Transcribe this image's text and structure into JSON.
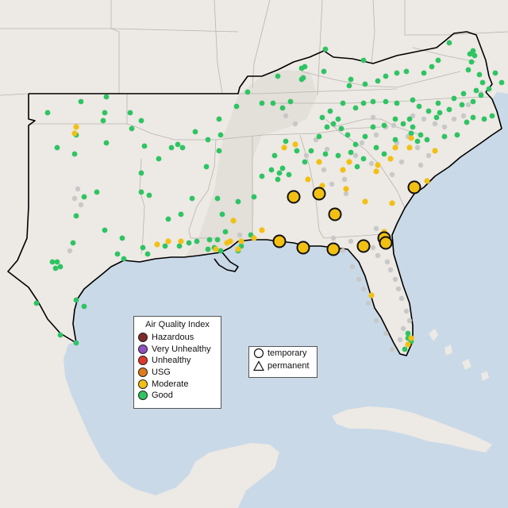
{
  "colors": {
    "water": "#c9d9e8",
    "land": "#ede9e4",
    "land_lowland": "#e3dfd9",
    "state_border": "#b9b3ad",
    "region_outline": "#000000",
    "sensor_unreporting": "#c8c8c8"
  },
  "legend_aqi": {
    "title": "Air Quality Index",
    "items": [
      {
        "label": "Hazardous",
        "color": "#7e2a2a"
      },
      {
        "label": "Very Unhealthy",
        "color": "#8f50c0"
      },
      {
        "label": "Unhealthy",
        "color": "#e0392a"
      },
      {
        "label": "USG",
        "color": "#e07a1a"
      },
      {
        "label": "Moderate",
        "color": "#f2c012"
      },
      {
        "label": "Good",
        "color": "#2ec463"
      }
    ]
  },
  "legend_monitor_type": {
    "items": [
      {
        "label": "temporary",
        "shape": "circle-icon"
      },
      {
        "label": "permanent",
        "shape": "triangle-icon"
      }
    ]
  },
  "monitors": {
    "temporary_moderate_count": 12,
    "good_count": 176,
    "moderate_count": 30,
    "unreporting_count": 60
  }
}
